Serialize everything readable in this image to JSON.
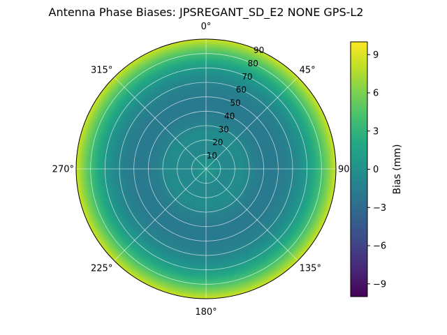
{
  "title": "Antenna Phase Biases: JPSREGANT_SD_E2 NONE GPS-L2",
  "polar_axes": {
    "angular_tick_labels": [
      "0°",
      "45°",
      "90°",
      "135°",
      "180°",
      "225°",
      "270°",
      "315°"
    ],
    "radial_tick_labels": [
      "10",
      "20",
      "30",
      "40",
      "50",
      "60",
      "70",
      "80",
      "90"
    ]
  },
  "colorbar": {
    "label": "Bias (mm)",
    "tick_labels": [
      "9",
      "6",
      "3",
      "0",
      "−3",
      "−6",
      "−9"
    ],
    "tick_values": [
      9,
      6,
      3,
      0,
      -3,
      -6,
      -9
    ],
    "vmin": -10,
    "vmax": 10,
    "colormap": "viridis",
    "gradient_stops": [
      {
        "t": 0.0,
        "color": "#440154"
      },
      {
        "t": 0.1,
        "color": "#482475"
      },
      {
        "t": 0.2,
        "color": "#414487"
      },
      {
        "t": 0.3,
        "color": "#355f8d"
      },
      {
        "t": 0.4,
        "color": "#2a788e"
      },
      {
        "t": 0.5,
        "color": "#21918c"
      },
      {
        "t": 0.6,
        "color": "#22a884"
      },
      {
        "t": 0.7,
        "color": "#44bf70"
      },
      {
        "t": 0.8,
        "color": "#7ad151"
      },
      {
        "t": 0.9,
        "color": "#bddf26"
      },
      {
        "t": 1.0,
        "color": "#fde725"
      }
    ]
  },
  "chart_data": {
    "type": "heatmap",
    "projection": "polar",
    "title": "Antenna Phase Biases: JPSREGANT_SD_E2 NONE GPS-L2",
    "theta_zero": "top",
    "theta_direction": "clockwise",
    "angular_ticks_deg": [
      0,
      45,
      90,
      135,
      180,
      225,
      270,
      315
    ],
    "radial_ticks_deg": [
      10,
      20,
      30,
      40,
      50,
      60,
      70,
      80,
      90
    ],
    "radial_range_deg": [
      0,
      90
    ],
    "value_label": "Bias (mm)",
    "value_range": [
      -10,
      10
    ],
    "colormap": "viridis",
    "grid": true,
    "azimuthal_symmetry": true,
    "radial_profile": {
      "zenith_deg": [
        0,
        5,
        10,
        15,
        20,
        25,
        30,
        35,
        40,
        45,
        50,
        55,
        60,
        65,
        70,
        75,
        80,
        85,
        90
      ],
      "bias_mm": [
        0.4,
        0.1,
        -0.5,
        -0.8,
        -0.5,
        -0.3,
        -1.0,
        -1.5,
        -1.8,
        -1.9,
        -1.8,
        -1.5,
        -1.0,
        -0.3,
        0.8,
        2.2,
        4.0,
        6.2,
        8.5
      ]
    }
  }
}
